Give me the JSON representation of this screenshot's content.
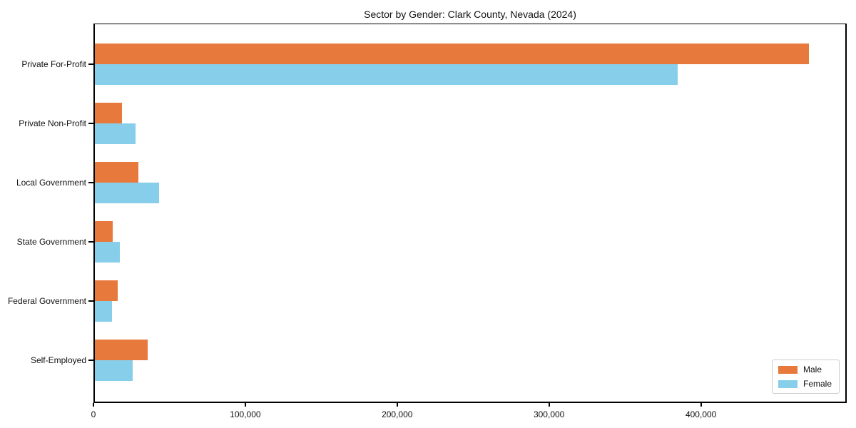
{
  "chart_data": {
    "type": "bar",
    "orientation": "horizontal",
    "title": "Sector by Gender: Clark County, Nevada (2024)",
    "categories": [
      "Private For-Profit",
      "Private Non-Profit",
      "Local Government",
      "State Government",
      "Federal Government",
      "Self-Employed"
    ],
    "series": [
      {
        "name": "Male",
        "color": "#E8793C",
        "values": [
          472000,
          17700,
          28700,
          11900,
          14900,
          34800
        ]
      },
      {
        "name": "Female",
        "color": "#87CEEB",
        "values": [
          385000,
          27000,
          42300,
          16300,
          11100,
          25100
        ]
      }
    ],
    "xlabel": "",
    "ylabel": "",
    "xlim": [
      0,
      496000
    ],
    "x_ticks": [
      {
        "value": 0,
        "label": "0"
      },
      {
        "value": 100000,
        "label": "100,000"
      },
      {
        "value": 200000,
        "label": "200,000"
      },
      {
        "value": 300000,
        "label": "300,000"
      },
      {
        "value": 400000,
        "label": "400,000"
      }
    ],
    "legend_position": "lower right",
    "grid": false,
    "colors": {
      "male": "#E8793C",
      "female": "#87CEEB",
      "axis": "#000000",
      "background": "#ffffff",
      "legend_border": "#cccccc"
    }
  }
}
